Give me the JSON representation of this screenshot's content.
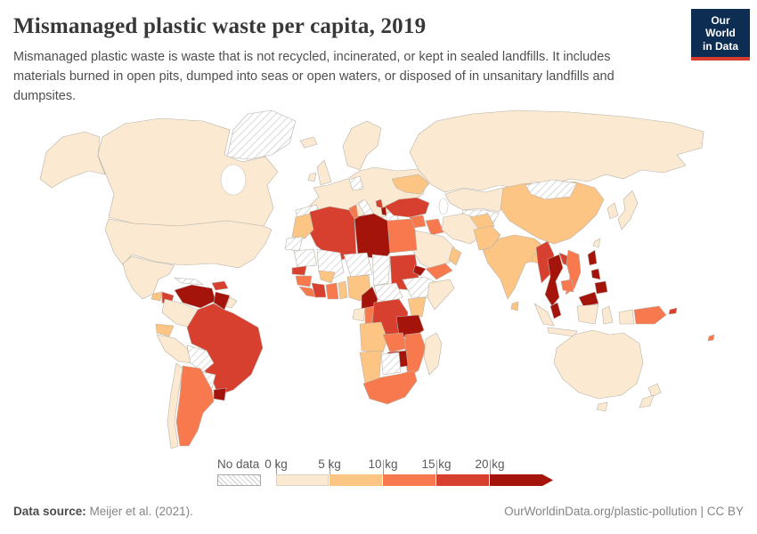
{
  "header": {
    "title": "Mismanaged plastic waste per capita, 2019",
    "logo": {
      "line1": "Our World",
      "line2": "in Data",
      "bg_color": "#0d2d52",
      "bar_color": "#d93a2e"
    }
  },
  "subtitle": "Mismanaged plastic waste is waste that is not recycled, incinerated, or kept in sealed landfills. It includes materials burned in open pits, dumped into seas or open waters, or disposed of in unsanitary landfills and dumpsites.",
  "footer": {
    "source_label": "Data source:",
    "source_text": " Meijer et al. (2021).",
    "right_text": "OurWorldinData.org/plastic-pollution | CC BY"
  },
  "chart_data": {
    "type": "choropleth",
    "title": "Mismanaged plastic waste per capita, 2019",
    "year": "2019",
    "unit": "kg",
    "bin_thresholds_kg": [
      0,
      5,
      10,
      15,
      20
    ],
    "legend": {
      "no_data_label": "No data",
      "bins": [
        {
          "label": "0 kg",
          "range": "0-5 kg",
          "color": "#fbead1"
        },
        {
          "label": "5 kg",
          "range": "5-10 kg",
          "color": "#fdc583"
        },
        {
          "label": "10 kg",
          "range": "10-15 kg",
          "color": "#f8794e"
        },
        {
          "label": "15 kg",
          "range": "15-20 kg",
          "color": "#d7402e"
        },
        {
          "label": "20 kg",
          "range": "20+ kg",
          "color": "#a5140b"
        }
      ]
    },
    "countries": {
      "greenland": {
        "name": "Greenland",
        "bin": "no-data"
      },
      "united-states": {
        "name": "United States",
        "bin": 0
      },
      "canada": {
        "name": "Canada",
        "bin": 0
      },
      "mexico": {
        "name": "Mexico",
        "bin": 0
      },
      "guatemala": {
        "name": "Guatemala",
        "bin": 1
      },
      "honduras": {
        "name": "Honduras & Nicaragua",
        "bin": 3
      },
      "panama": {
        "name": "Costa Rica & Panama",
        "bin": 2
      },
      "cuba": {
        "name": "Cuba",
        "bin": "no-data"
      },
      "hispaniola": {
        "name": "Haiti & Dominican Republic",
        "bin": 3
      },
      "venezuela": {
        "name": "Venezuela",
        "bin": 4
      },
      "guyana": {
        "name": "Guyana & Suriname",
        "bin": 4
      },
      "french-guiana": {
        "name": "French Guiana",
        "bin": 0
      },
      "colombia": {
        "name": "Colombia",
        "bin": 0
      },
      "ecuador": {
        "name": "Ecuador",
        "bin": 1
      },
      "peru": {
        "name": "Peru",
        "bin": 0
      },
      "brazil": {
        "name": "Brazil",
        "bin": 3
      },
      "bolivia": {
        "name": "Bolivia",
        "bin": "no-data"
      },
      "paraguay": {
        "name": "Paraguay",
        "bin": "no-data"
      },
      "uruguay": {
        "name": "Uruguay",
        "bin": 4
      },
      "argentina": {
        "name": "Argentina",
        "bin": 2
      },
      "chile": {
        "name": "Chile",
        "bin": 0
      },
      "iceland": {
        "name": "Iceland",
        "bin": 0
      },
      "united-kingdom": {
        "name": "United Kingdom",
        "bin": 0
      },
      "ireland": {
        "name": "Ireland",
        "bin": 0
      },
      "scandinavia": {
        "name": "Scandinavia",
        "bin": 0
      },
      "western-europe": {
        "name": "Western Europe",
        "bin": 0
      },
      "spain-portugal": {
        "name": "Spain & Portugal",
        "bin": "no-data"
      },
      "germany": {
        "name": "Germany",
        "bin": "no-data"
      },
      "italy": {
        "name": "Italy",
        "bin": "no-data"
      },
      "greece": {
        "name": "Greece",
        "bin": "no-data"
      },
      "albania": {
        "name": "Albania",
        "bin": 4
      },
      "montenegro": {
        "name": "Montenegro",
        "bin": 3
      },
      "ukraine": {
        "name": "Ukraine",
        "bin": 1
      },
      "russia": {
        "name": "Russia",
        "bin": 0
      },
      "kazakhstan": {
        "name": "Kazakhstan",
        "bin": 0
      },
      "central-asia": {
        "name": "Central Asia",
        "bin": "no-data"
      },
      "turkey": {
        "name": "Turkey",
        "bin": 3
      },
      "syria": {
        "name": "Syria",
        "bin": 2
      },
      "iraq": {
        "name": "Iraq",
        "bin": 2
      },
      "iran": {
        "name": "Iran",
        "bin": 0
      },
      "saudi-arabia": {
        "name": "Saudi Arabia",
        "bin": 0
      },
      "yemen": {
        "name": "Yemen",
        "bin": 2
      },
      "oman": {
        "name": "Oman",
        "bin": 1
      },
      "egypt": {
        "name": "Egypt",
        "bin": 2
      },
      "libya": {
        "name": "Libya",
        "bin": 4
      },
      "tunisia": {
        "name": "Tunisia",
        "bin": 2
      },
      "algeria": {
        "name": "Algeria",
        "bin": 3
      },
      "morocco": {
        "name": "Morocco",
        "bin": 1
      },
      "western-sahara": {
        "name": "Western Sahara",
        "bin": "no-data"
      },
      "mauritania": {
        "name": "Mauritania",
        "bin": "no-data"
      },
      "mali": {
        "name": "Mali",
        "bin": "no-data"
      },
      "niger": {
        "name": "Niger",
        "bin": "no-data"
      },
      "chad": {
        "name": "Chad",
        "bin": "no-data"
      },
      "sudan": {
        "name": "Sudan",
        "bin": 3
      },
      "eritrea": {
        "name": "Eritrea",
        "bin": 4
      },
      "ethiopia": {
        "name": "Ethiopia",
        "bin": "no-data"
      },
      "somalia": {
        "name": "Somalia",
        "bin": 0
      },
      "senegal": {
        "name": "Senegal",
        "bin": 3
      },
      "guinea": {
        "name": "Guinea",
        "bin": 2
      },
      "sierra-leone": {
        "name": "Sierra Leone & Liberia",
        "bin": 2
      },
      "ivory-coast": {
        "name": "Cote d'Ivoire",
        "bin": 3
      },
      "burkina-faso": {
        "name": "Burkina Faso",
        "bin": 1
      },
      "ghana": {
        "name": "Ghana",
        "bin": 2
      },
      "togo-benin": {
        "name": "Togo & Benin",
        "bin": 1
      },
      "nigeria": {
        "name": "Nigeria",
        "bin": 1
      },
      "cameroon": {
        "name": "Cameroon",
        "bin": 4
      },
      "central-african-republic": {
        "name": "Central African Republic",
        "bin": "no-data"
      },
      "gabon": {
        "name": "Gabon",
        "bin": 0
      },
      "congo": {
        "name": "Congo",
        "bin": 2
      },
      "dr-congo": {
        "name": "Democratic Republic of Congo",
        "bin": 3
      },
      "kenya": {
        "name": "Kenya",
        "bin": 1
      },
      "tanzania": {
        "name": "Tanzania",
        "bin": 4
      },
      "angola": {
        "name": "Angola",
        "bin": 1
      },
      "zambia": {
        "name": "Zambia",
        "bin": 2
      },
      "zimbabwe": {
        "name": "Zimbabwe",
        "bin": 4
      },
      "mozambique": {
        "name": "Mozambique",
        "bin": 2
      },
      "namibia": {
        "name": "Namibia",
        "bin": 1
      },
      "botswana": {
        "name": "Botswana",
        "bin": "no-data"
      },
      "south-africa": {
        "name": "South Africa",
        "bin": 2
      },
      "madagascar": {
        "name": "Madagascar",
        "bin": 0
      },
      "afghanistan": {
        "name": "Afghanistan",
        "bin": 1
      },
      "pakistan": {
        "name": "Pakistan",
        "bin": 1
      },
      "india": {
        "name": "India",
        "bin": 1
      },
      "sri-lanka": {
        "name": "Sri Lanka",
        "bin": 1
      },
      "bangladesh": {
        "name": "Bangladesh",
        "bin": 1
      },
      "china": {
        "name": "China",
        "bin": 1
      },
      "mongolia": {
        "name": "Mongolia",
        "bin": "no-data"
      },
      "japan": {
        "name": "Japan",
        "bin": 0
      },
      "south-korea": {
        "name": "South Korea",
        "bin": 0
      },
      "taiwan": {
        "name": "Taiwan",
        "bin": 0
      },
      "myanmar": {
        "name": "Myanmar",
        "bin": 3
      },
      "thailand": {
        "name": "Thailand",
        "bin": 4
      },
      "laos": {
        "name": "Laos",
        "bin": 3
      },
      "vietnam": {
        "name": "Vietnam",
        "bin": 2
      },
      "cambodia": {
        "name": "Cambodia",
        "bin": 2
      },
      "malaysia": {
        "name": "Malaysia",
        "bin": 4
      },
      "indonesia": {
        "name": "Indonesia",
        "bin": 0
      },
      "philippines": {
        "name": "Philippines",
        "bin": 4
      },
      "papua-new-guinea": {
        "name": "Papua New Guinea",
        "bin": 2
      },
      "australia": {
        "name": "Australia",
        "bin": 0
      },
      "new-zealand": {
        "name": "New Zealand",
        "bin": 0
      },
      "solomon-islands": {
        "name": "Solomon Islands",
        "bin": 3
      },
      "fiji": {
        "name": "Fiji",
        "bin": 2
      }
    }
  }
}
